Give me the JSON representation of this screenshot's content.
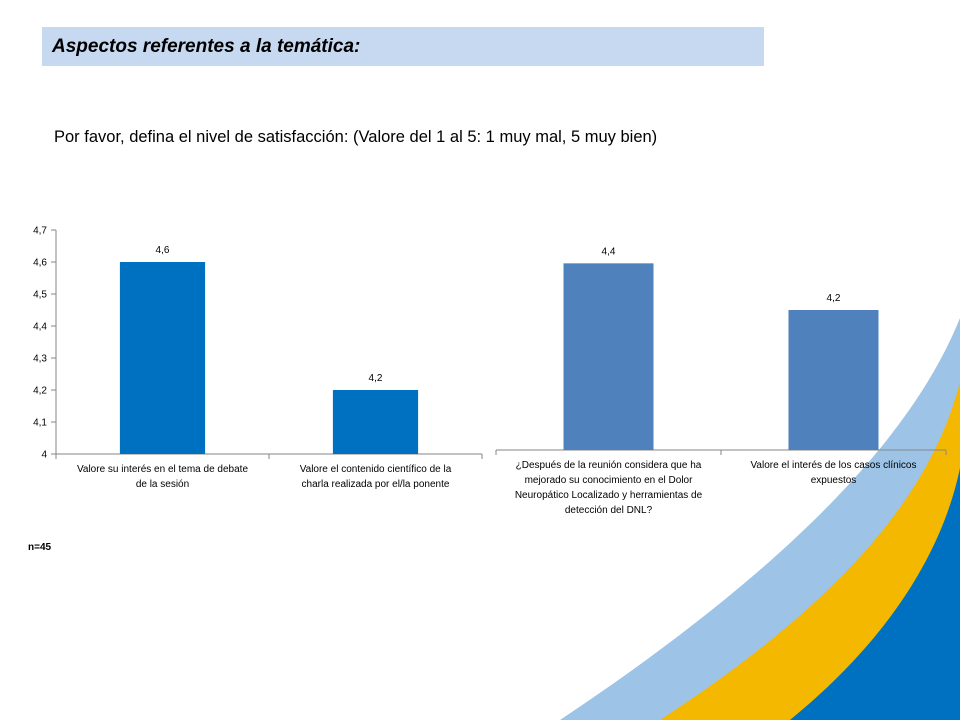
{
  "header": {
    "title": "Aspectos referentes a la temática:",
    "subtitle": "Por favor, defina el nivel de satisfacción: (Valore del 1 al 5: 1 muy mal, 5 muy bien)",
    "sample_size": "n=45"
  },
  "colors": {
    "title_bg": "#c6d9f1",
    "bar_left": "#0070c0",
    "bar_right": "#4f81bd",
    "deco_light": "#9dc3e6",
    "deco_yellow": "#f5b800",
    "deco_blue": "#0070c0"
  },
  "chart_data": [
    {
      "type": "bar",
      "categories": [
        "Valore su interés en el tema de debate de la sesión",
        "Valore el contenido científico de la charla realizada por el/la ponente"
      ],
      "values": [
        4.6,
        4.2
      ],
      "value_labels": [
        "4,6",
        "4,2"
      ],
      "ylim": [
        4,
        4.7
      ],
      "yticks": [
        "4",
        "4,1",
        "4,2",
        "4,3",
        "4,4",
        "4,5",
        "4,6",
        "4,7"
      ],
      "grid": false
    },
    {
      "type": "bar",
      "categories": [
        "¿Después de la reunión considera que ha mejorado su conocimiento en el Dolor Neuropático Localizado y herramientas de detección del DNL?",
        "Valore el interés de los casos clínicos expuestos"
      ],
      "values": [
        4.4,
        4.2
      ],
      "value_labels": [
        "4,4",
        "4,2"
      ],
      "ylim": [
        3.6,
        4.8
      ],
      "y_axis_visible": false,
      "grid": false
    }
  ]
}
